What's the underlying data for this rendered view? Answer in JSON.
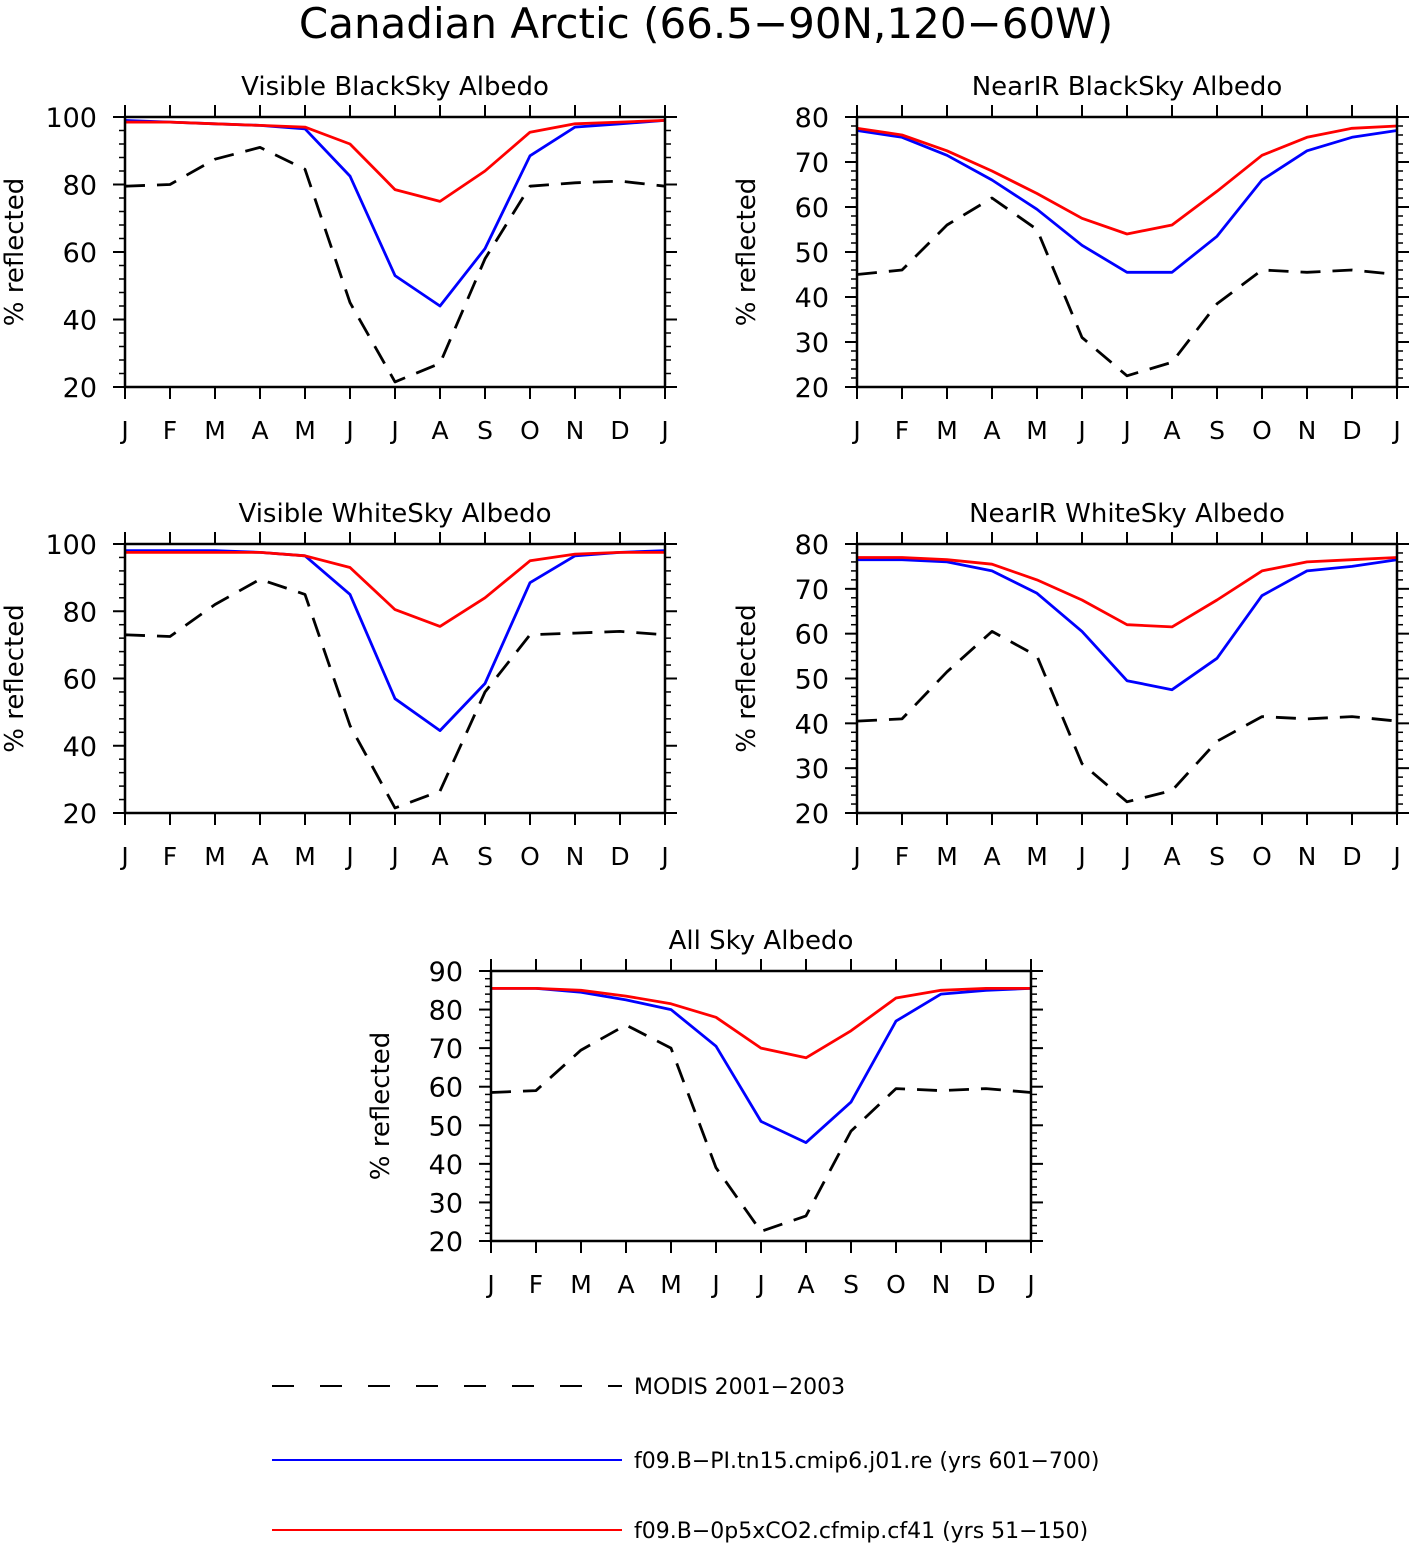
{
  "figure": {
    "title": "Canadian Arctic (66.5−90N,120−60W)"
  },
  "legend": [
    {
      "label": "MODIS 2001−2003",
      "color": "#000000",
      "dash": true
    },
    {
      "label": "f09.B−PI.tn15.cmip6.j01.re (yrs 601−700)",
      "color": "#0000ff",
      "dash": false
    },
    {
      "label": "f09.B−0p5xCO2.cfmip.cf41 (yrs 51−150)",
      "color": "#ff0000",
      "dash": false
    }
  ],
  "chart_data": [
    {
      "type": "line",
      "title": "Visible BlackSky Albedo",
      "xlabel": "",
      "ylabel": "% reflected",
      "categories": [
        "J",
        "F",
        "M",
        "A",
        "M",
        "J",
        "J",
        "A",
        "S",
        "O",
        "N",
        "D",
        "J"
      ],
      "ylim": [
        20,
        100
      ],
      "yticks": [
        20,
        40,
        60,
        80,
        100
      ],
      "series": [
        {
          "name": "MODIS 2001−2003",
          "color": "#000000",
          "dash": true,
          "values": [
            79.5,
            80,
            87.5,
            91,
            84.5,
            45,
            21.5,
            27,
            58,
            79.5,
            80.5,
            81,
            79.5
          ]
        },
        {
          "name": "f09.B−PI.tn15.cmip6.j01.re (yrs 601−700)",
          "color": "#0000ff",
          "dash": false,
          "values": [
            99,
            98.5,
            98,
            97.5,
            96.5,
            82.5,
            53,
            44,
            61,
            88.5,
            97,
            98,
            99
          ]
        },
        {
          "name": "f09.B−0p5xCO2.cfmip.cf41 (yrs 51−150)",
          "color": "#ff0000",
          "dash": false,
          "values": [
            98.5,
            98.5,
            98,
            97.5,
            97,
            92,
            78.5,
            75,
            84,
            95.5,
            98,
            98.5,
            99
          ]
        }
      ]
    },
    {
      "type": "line",
      "title": "NearIR BlackSky Albedo",
      "xlabel": "",
      "ylabel": "% reflected",
      "categories": [
        "J",
        "F",
        "M",
        "A",
        "M",
        "J",
        "J",
        "A",
        "S",
        "O",
        "N",
        "D",
        "J"
      ],
      "ylim": [
        20,
        80
      ],
      "yticks": [
        20,
        30,
        40,
        50,
        60,
        70,
        80
      ],
      "series": [
        {
          "name": "MODIS 2001−2003",
          "color": "#000000",
          "dash": true,
          "values": [
            45,
            46,
            56,
            62,
            55,
            31,
            22.5,
            25.5,
            38.5,
            46,
            45.5,
            46,
            45
          ]
        },
        {
          "name": "f09.B−PI.tn15.cmip6.j01.re (yrs 601−700)",
          "color": "#0000ff",
          "dash": false,
          "values": [
            77,
            75.5,
            71.5,
            66,
            59.5,
            51.5,
            45.5,
            45.5,
            53.5,
            66,
            72.5,
            75.5,
            77
          ]
        },
        {
          "name": "f09.B−0p5xCO2.cfmip.cf41 (yrs 51−150)",
          "color": "#ff0000",
          "dash": false,
          "values": [
            77.5,
            76,
            72.5,
            68,
            63,
            57.5,
            54,
            56,
            63.5,
            71.5,
            75.5,
            77.5,
            78
          ]
        }
      ]
    },
    {
      "type": "line",
      "title": "Visible WhiteSky Albedo",
      "xlabel": "",
      "ylabel": "% reflected",
      "categories": [
        "J",
        "F",
        "M",
        "A",
        "M",
        "J",
        "J",
        "A",
        "S",
        "O",
        "N",
        "D",
        "J"
      ],
      "ylim": [
        20,
        100
      ],
      "yticks": [
        20,
        40,
        60,
        80,
        100
      ],
      "series": [
        {
          "name": "MODIS 2001−2003",
          "color": "#000000",
          "dash": true,
          "values": [
            73,
            72.5,
            82,
            89.5,
            85,
            46,
            21.5,
            26.5,
            56,
            73,
            73.5,
            74,
            73
          ]
        },
        {
          "name": "f09.B−PI.tn15.cmip6.j01.re (yrs 601−700)",
          "color": "#0000ff",
          "dash": false,
          "values": [
            98,
            98,
            98,
            97.5,
            96.5,
            85,
            54,
            44.5,
            58.5,
            88.5,
            96.5,
            97.5,
            98
          ]
        },
        {
          "name": "f09.B−0p5xCO2.cfmip.cf41 (yrs 51−150)",
          "color": "#ff0000",
          "dash": false,
          "values": [
            97.5,
            97.5,
            97.5,
            97.5,
            96.5,
            93,
            80.5,
            75.5,
            84,
            95,
            97,
            97.5,
            97.5
          ]
        }
      ]
    },
    {
      "type": "line",
      "title": "NearIR WhiteSky Albedo",
      "xlabel": "",
      "ylabel": "% reflected",
      "categories": [
        "J",
        "F",
        "M",
        "A",
        "M",
        "J",
        "J",
        "A",
        "S",
        "O",
        "N",
        "D",
        "J"
      ],
      "ylim": [
        20,
        80
      ],
      "yticks": [
        20,
        30,
        40,
        50,
        60,
        70,
        80
      ],
      "series": [
        {
          "name": "MODIS 2001−2003",
          "color": "#000000",
          "dash": true,
          "values": [
            40.5,
            41,
            51.5,
            60.5,
            55,
            31,
            22.5,
            25,
            36,
            41.5,
            41,
            41.5,
            40.5
          ]
        },
        {
          "name": "f09.B−PI.tn15.cmip6.j01.re (yrs 601−700)",
          "color": "#0000ff",
          "dash": false,
          "values": [
            76.5,
            76.5,
            76,
            74,
            69,
            60.5,
            49.5,
            47.5,
            54.5,
            68.5,
            74,
            75,
            76.5
          ]
        },
        {
          "name": "f09.B−0p5xCO2.cfmip.cf41 (yrs 51−150)",
          "color": "#ff0000",
          "dash": false,
          "values": [
            77,
            77,
            76.5,
            75.5,
            72,
            67.5,
            62,
            61.5,
            67.5,
            74,
            76,
            76.5,
            77
          ]
        }
      ]
    },
    {
      "type": "line",
      "title": "All Sky Albedo",
      "xlabel": "",
      "ylabel": "% reflected",
      "categories": [
        "J",
        "F",
        "M",
        "A",
        "M",
        "J",
        "J",
        "A",
        "S",
        "O",
        "N",
        "D",
        "J"
      ],
      "ylim": [
        20,
        90
      ],
      "yticks": [
        20,
        30,
        40,
        50,
        60,
        70,
        80,
        90
      ],
      "series": [
        {
          "name": "MODIS 2001−2003",
          "color": "#000000",
          "dash": true,
          "values": [
            58.5,
            59,
            69.5,
            76,
            70,
            39,
            22.5,
            26.5,
            48.5,
            59.5,
            59,
            59.5,
            58.5
          ]
        },
        {
          "name": "f09.B−PI.tn15.cmip6.j01.re (yrs 601−700)",
          "color": "#0000ff",
          "dash": false,
          "values": [
            85.5,
            85.5,
            84.5,
            82.5,
            80,
            70.5,
            51,
            45.5,
            56,
            77,
            84,
            85,
            85.5
          ]
        },
        {
          "name": "f09.B−0p5xCO2.cfmip.cf41 (yrs 51−150)",
          "color": "#ff0000",
          "dash": false,
          "values": [
            85.5,
            85.5,
            85,
            83.5,
            81.5,
            78,
            70,
            67.5,
            74.5,
            83,
            85,
            85.5,
            85.5
          ]
        }
      ]
    }
  ]
}
